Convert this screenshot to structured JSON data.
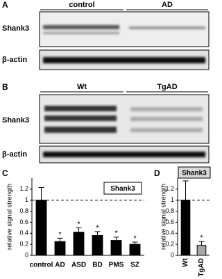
{
  "panels": {
    "a": {
      "letter": "A",
      "groups": [
        "control",
        "AD"
      ],
      "rows": [
        "Shank3",
        "β-actin"
      ]
    },
    "b": {
      "letter": "B",
      "groups": [
        "Wt",
        "TgAD"
      ],
      "rows": [
        "Shank3",
        "β-actin"
      ]
    },
    "c": {
      "letter": "C"
    },
    "d": {
      "letter": "D"
    }
  },
  "chart_data": [
    {
      "type": "bar",
      "ylabel": "relative signal strength",
      "label_box": "Shank3",
      "categories": [
        "control",
        "AD",
        "ASD",
        "BD",
        "PMS",
        "SZ"
      ],
      "series": [
        {
          "color": "#000000",
          "values": [
            1.0,
            0.25,
            0.42,
            0.36,
            0.27,
            0.2
          ],
          "errors": [
            0.23,
            0.06,
            0.08,
            0.07,
            0.06,
            0.04
          ]
        }
      ],
      "significance": [
        null,
        "*",
        "*",
        "*",
        "*",
        "*"
      ],
      "reference_line": 1,
      "ylim": [
        0,
        1.4
      ],
      "yticks": [
        0,
        0.2,
        0.4,
        0.6,
        0.8,
        1,
        1.2
      ]
    },
    {
      "type": "bar",
      "ylabel": "relative signal strength",
      "label_box": "Shank3",
      "categories": [
        "Wt",
        "TgAD"
      ],
      "series": [
        {
          "colors": [
            "#000000",
            "#a6a6a6"
          ],
          "values": [
            1.0,
            0.18
          ],
          "errors": [
            0.35,
            0.07
          ]
        }
      ],
      "significance": [
        null,
        "*"
      ],
      "reference_line": 1,
      "ylim": [
        0,
        1.4
      ],
      "yticks": [
        0,
        0.2,
        0.4,
        0.6,
        0.8,
        1,
        1.2
      ]
    }
  ]
}
